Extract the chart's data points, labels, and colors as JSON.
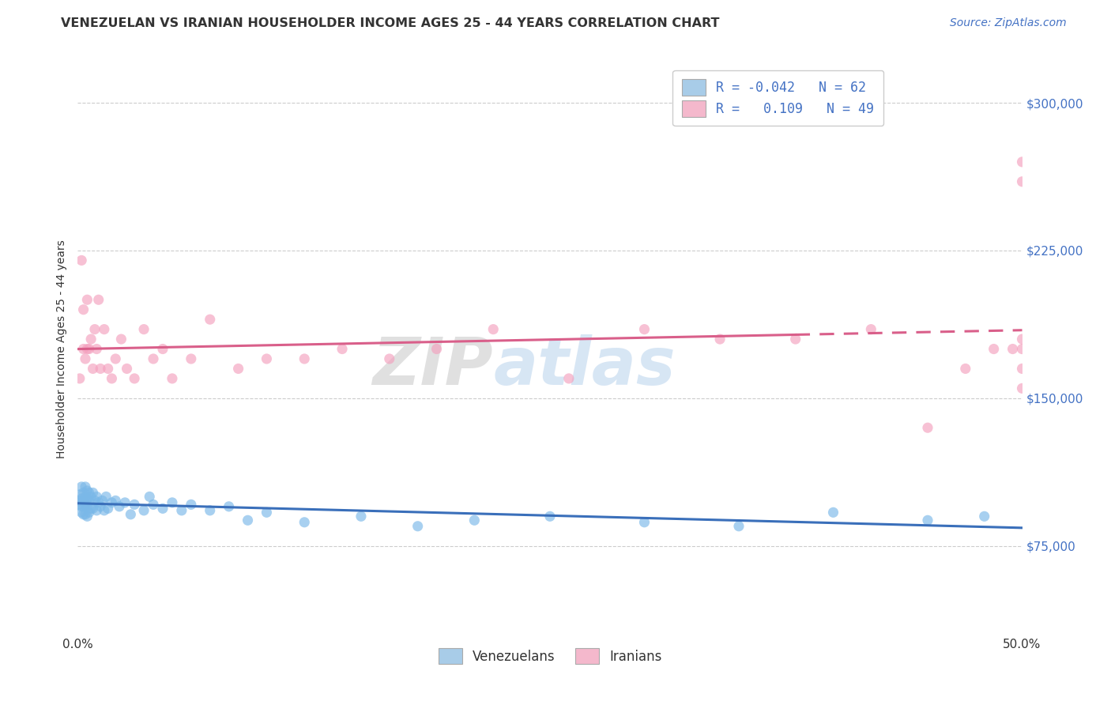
{
  "title": "VENEZUELAN VS IRANIAN HOUSEHOLDER INCOME AGES 25 - 44 YEARS CORRELATION CHART",
  "source": "Source: ZipAtlas.com",
  "ylabel": "Householder Income Ages 25 - 44 years",
  "xlim": [
    0.0,
    0.5
  ],
  "ylim": [
    30000,
    320000
  ],
  "yticks": [
    75000,
    150000,
    225000,
    300000
  ],
  "ytick_labels": [
    "$75,000",
    "$150,000",
    "$225,000",
    "$300,000"
  ],
  "xticks": [
    0.0,
    0.5
  ],
  "xtick_labels": [
    "0.0%",
    "50.0%"
  ],
  "legend_labels": [
    "Venezuelans",
    "Iranians"
  ],
  "legend_r": [
    "-0.042",
    "0.109"
  ],
  "legend_n": [
    "62",
    "49"
  ],
  "blue_scatter_color": "#7ab8e8",
  "pink_scatter_color": "#f4a0be",
  "blue_line_color": "#3a6fba",
  "pink_line_color": "#d95f8a",
  "blue_legend_color": "#a8cce8",
  "pink_legend_color": "#f4b8cc",
  "background_color": "#ffffff",
  "title_fontsize": 11.5,
  "axis_fontsize": 10,
  "tick_fontsize": 11,
  "source_fontsize": 10,
  "legend_fontsize": 12,
  "venezuelan_x": [
    0.001,
    0.001,
    0.001,
    0.002,
    0.002,
    0.002,
    0.002,
    0.003,
    0.003,
    0.003,
    0.003,
    0.004,
    0.004,
    0.004,
    0.004,
    0.005,
    0.005,
    0.005,
    0.005,
    0.006,
    0.006,
    0.006,
    0.007,
    0.007,
    0.008,
    0.008,
    0.009,
    0.01,
    0.01,
    0.011,
    0.012,
    0.013,
    0.014,
    0.015,
    0.016,
    0.018,
    0.02,
    0.022,
    0.025,
    0.028,
    0.03,
    0.035,
    0.038,
    0.04,
    0.045,
    0.05,
    0.055,
    0.06,
    0.07,
    0.08,
    0.09,
    0.1,
    0.12,
    0.15,
    0.18,
    0.21,
    0.25,
    0.3,
    0.35,
    0.4,
    0.45,
    0.48
  ],
  "venezuelan_y": [
    101000,
    98000,
    96000,
    105000,
    99000,
    95000,
    92000,
    102000,
    98000,
    95000,
    91000,
    105000,
    100000,
    96000,
    91000,
    103000,
    99000,
    95000,
    90000,
    102000,
    98000,
    92000,
    100000,
    94000,
    102000,
    94000,
    98000,
    100000,
    93000,
    97000,
    95000,
    98000,
    93000,
    100000,
    94000,
    97000,
    98000,
    95000,
    97000,
    91000,
    96000,
    93000,
    100000,
    96000,
    94000,
    97000,
    93000,
    96000,
    93000,
    95000,
    88000,
    92000,
    87000,
    90000,
    85000,
    88000,
    90000,
    87000,
    85000,
    92000,
    88000,
    90000
  ],
  "iranian_x": [
    0.001,
    0.002,
    0.003,
    0.003,
    0.004,
    0.005,
    0.005,
    0.006,
    0.007,
    0.008,
    0.009,
    0.01,
    0.011,
    0.012,
    0.014,
    0.016,
    0.018,
    0.02,
    0.023,
    0.026,
    0.03,
    0.035,
    0.04,
    0.045,
    0.05,
    0.06,
    0.07,
    0.085,
    0.1,
    0.12,
    0.14,
    0.165,
    0.19,
    0.22,
    0.26,
    0.3,
    0.34,
    0.38,
    0.42,
    0.45,
    0.47,
    0.485,
    0.495,
    0.5,
    0.5,
    0.5,
    0.5,
    0.5,
    0.5
  ],
  "iranian_y": [
    160000,
    220000,
    175000,
    195000,
    170000,
    175000,
    200000,
    175000,
    180000,
    165000,
    185000,
    175000,
    200000,
    165000,
    185000,
    165000,
    160000,
    170000,
    180000,
    165000,
    160000,
    185000,
    170000,
    175000,
    160000,
    170000,
    190000,
    165000,
    170000,
    170000,
    175000,
    170000,
    175000,
    185000,
    160000,
    185000,
    180000,
    180000,
    185000,
    135000,
    165000,
    175000,
    175000,
    270000,
    260000,
    155000,
    165000,
    175000,
    180000
  ]
}
